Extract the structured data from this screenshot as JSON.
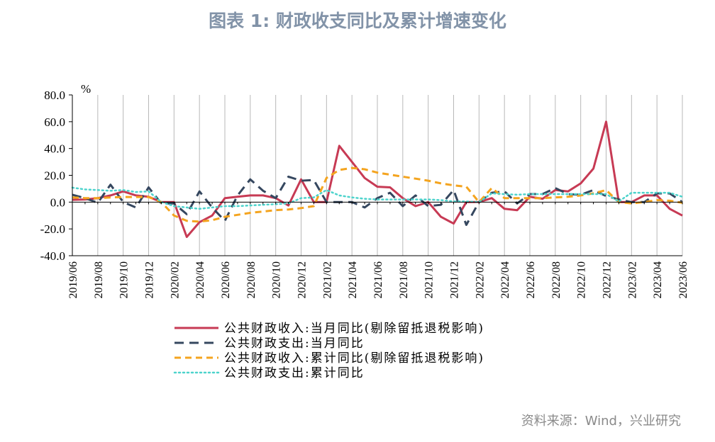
{
  "title": "图表 1: 财政收支同比及累计增速变化",
  "source": "资料来源：Wind，兴业研究",
  "colors": {
    "title": "#8293a8",
    "source": "#8a8a8a",
    "grid": "#b8b8b8"
  },
  "chart_data": {
    "type": "line",
    "unit_label": "%",
    "ylim": [
      -40,
      80
    ],
    "y_ticks": [
      "80.0",
      "60.0",
      "40.0",
      "20.0",
      "0.0",
      "-20.0",
      "-40.0"
    ],
    "y_tick_values": [
      80,
      60,
      40,
      20,
      0,
      -20,
      -40
    ],
    "x_tick_labels": [
      "2019/06",
      "2019/08",
      "2019/10",
      "2019/12",
      "2020/02",
      "2020/04",
      "2020/06",
      "2020/08",
      "2020/10",
      "2020/12",
      "2021/02",
      "2021/04",
      "2021/06",
      "2021/08",
      "2021/10",
      "2021/12",
      "2022/02",
      "2022/04",
      "2022/06",
      "2022/08",
      "2022/10",
      "2022/12",
      "2023/02",
      "2023/04",
      "2023/06"
    ],
    "grid": "vertical",
    "legend_position": "bottom",
    "x": [
      "2019/06",
      "2019/07",
      "2019/08",
      "2019/09",
      "2019/10",
      "2019/11",
      "2019/12",
      "2020/01",
      "2020/02",
      "2020/03",
      "2020/04",
      "2020/05",
      "2020/06",
      "2020/07",
      "2020/08",
      "2020/09",
      "2020/10",
      "2020/11",
      "2020/12",
      "2021/01",
      "2021/02",
      "2021/03",
      "2021/04",
      "2021/05",
      "2021/06",
      "2021/07",
      "2021/08",
      "2021/09",
      "2021/10",
      "2021/11",
      "2021/12",
      "2022/01",
      "2022/02",
      "2022/03",
      "2022/04",
      "2022/05",
      "2022/06",
      "2022/07",
      "2022/08",
      "2022/09",
      "2022/10",
      "2022/11",
      "2022/12",
      "2023/01",
      "2023/02",
      "2023/03",
      "2023/04",
      "2023/05",
      "2023/06"
    ],
    "series": [
      {
        "name": "公共财政收入:当月同比(剔除留抵退税影响)",
        "color": "#c73a54",
        "dash": "solid",
        "values": [
          1.7,
          2.0,
          3.0,
          5.0,
          8.0,
          5.0,
          4.0,
          0.0,
          0.0,
          -26.0,
          -15.0,
          -10.0,
          3.0,
          4.0,
          5.0,
          5.0,
          3.0,
          -2.5,
          17.0,
          0.0,
          0.0,
          42.0,
          30.0,
          18.0,
          11.5,
          11.0,
          3.0,
          -3.0,
          0.0,
          -11.0,
          -16.0,
          0.0,
          0.0,
          3.0,
          -5.0,
          -6.0,
          4.0,
          2.5,
          9.0,
          8.0,
          14.0,
          25.0,
          60.0,
          0.0,
          0.0,
          5.0,
          5.0,
          -5.0,
          -10.0
        ]
      },
      {
        "name": "公共财政支出:当月同比",
        "color": "#35475f",
        "dash": "long-dash",
        "values": [
          5.5,
          3.0,
          -0.5,
          13.0,
          0.0,
          -4.0,
          11.0,
          -1.0,
          -1.0,
          -9.0,
          8.0,
          -4.0,
          -14.0,
          5.0,
          17.0,
          8.5,
          3.0,
          19.0,
          16.0,
          16.5,
          0.0,
          0.0,
          0.0,
          -4.0,
          3.0,
          7.0,
          -3.0,
          5.0,
          -3.0,
          -2.0,
          9.0,
          -17.0,
          0.0,
          7.0,
          8.0,
          -1.0,
          6.0,
          6.0,
          10.5,
          6.0,
          5.5,
          9.0,
          4.5,
          2.0,
          0.0,
          0.0,
          6.5,
          6.5,
          0.0
        ]
      },
      {
        "name": "公共财政收入:累计同比(剔除留抵退税影响)",
        "color": "#f4a41f",
        "dash": "dash",
        "values": [
          3.5,
          3.0,
          3.0,
          3.5,
          3.8,
          3.8,
          3.8,
          0.0,
          -10.0,
          -14.0,
          -14.5,
          -13.5,
          -11.0,
          -9.5,
          -8.0,
          -7.0,
          -6.0,
          -5.5,
          -4.5,
          -3.0,
          18.0,
          24.0,
          25.5,
          24.5,
          22.0,
          20.5,
          19.0,
          17.5,
          16.0,
          14.0,
          12.5,
          11.5,
          0.0,
          10.5,
          3.0,
          3.0,
          3.0,
          3.0,
          3.5,
          4.0,
          5.0,
          6.5,
          9.0,
          0.0,
          -1.0,
          0.0,
          1.5,
          1.0,
          -0.5
        ]
      },
      {
        "name": "公共财政支出:累计同比",
        "color": "#4dd3cc",
        "dash": "dot",
        "values": [
          10.8,
          9.5,
          9.0,
          8.5,
          9.0,
          7.5,
          8.0,
          0.0,
          -3.0,
          -4.0,
          -5.0,
          -4.0,
          -3.0,
          -3.0,
          -2.5,
          -2.0,
          -1.5,
          -1.0,
          3.0,
          3.5,
          9.0,
          5.0,
          3.5,
          2.5,
          2.0,
          2.0,
          2.0,
          2.0,
          2.0,
          1.5,
          0.5,
          0.5,
          0.0,
          6.5,
          6.0,
          5.5,
          6.0,
          6.0,
          6.0,
          6.0,
          6.0,
          6.0,
          6.0,
          0.5,
          7.0,
          7.0,
          7.0,
          7.0,
          4.0
        ]
      }
    ]
  }
}
